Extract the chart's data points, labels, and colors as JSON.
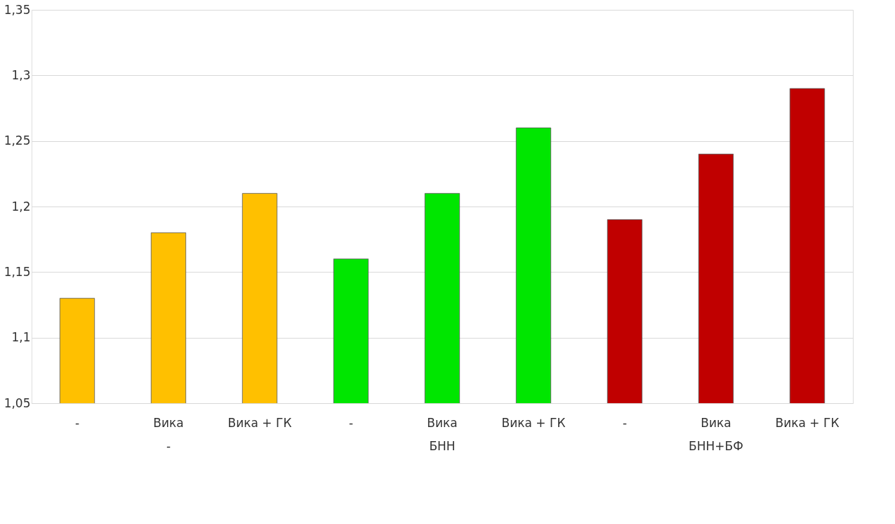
{
  "chart_data": {
    "type": "bar",
    "categories": [
      "-",
      "Вика",
      "Вика + ГК",
      "-",
      "Вика",
      "Вика + ГК",
      "-",
      "Вика",
      "Вика + ГК"
    ],
    "values": [
      1.13,
      1.18,
      1.21,
      1.16,
      1.21,
      1.26,
      1.19,
      1.24,
      1.29
    ],
    "colors": [
      "#ffc000",
      "#ffc000",
      "#ffc000",
      "#00e600",
      "#00e600",
      "#00e600",
      "#c00000",
      "#c00000",
      "#c00000"
    ],
    "ylim": [
      1.05,
      1.35
    ],
    "yticks": [
      {
        "value": 1.05,
        "label": "1,05"
      },
      {
        "value": 1.1,
        "label": "1,1"
      },
      {
        "value": 1.15,
        "label": "1,15"
      },
      {
        "value": 1.2,
        "label": "1,2"
      },
      {
        "value": 1.25,
        "label": "1,25"
      },
      {
        "value": 1.3,
        "label": "1,3"
      },
      {
        "value": 1.35,
        "label": "1,35"
      }
    ],
    "annotations": [
      "-",
      "БНН",
      "БНН+БФ"
    ],
    "grid": "y"
  }
}
